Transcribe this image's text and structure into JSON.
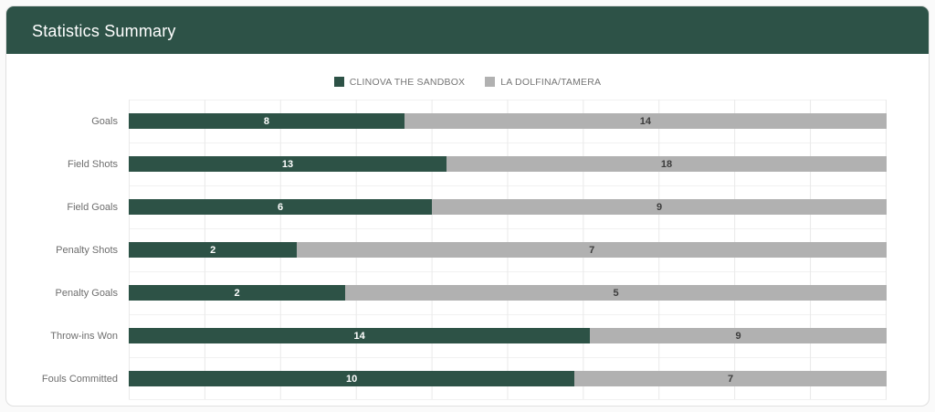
{
  "header": {
    "title": "Statistics Summary"
  },
  "colors": {
    "header_bg": "#2d5247",
    "team1": "#2d5246",
    "team2": "#b1b1b1",
    "value_on_team1": "#ffffff",
    "value_on_team2": "#3d3d3d",
    "label_text": "#6e6e6e",
    "legend_text": "#757575",
    "gridline": "#e9e9e9"
  },
  "chart_data": {
    "type": "bar",
    "variant": "horizontal-stacked-normalized",
    "title": "Statistics Summary",
    "xlabel": "",
    "ylabel": "",
    "grid": true,
    "legend_position": "top-center",
    "categories": [
      "Goals",
      "Field Shots",
      "Field Goals",
      "Penalty Shots",
      "Penalty Goals",
      "Throw-ins Won",
      "Fouls Committed"
    ],
    "series": [
      {
        "name": "CLINOVA THE SANDBOX",
        "color": "#2d5246",
        "values": [
          8,
          13,
          6,
          2,
          2,
          14,
          10
        ]
      },
      {
        "name": "LA DOLFINA/TAMERA",
        "color": "#b1b1b1",
        "values": [
          14,
          18,
          9,
          7,
          5,
          9,
          7
        ]
      }
    ]
  }
}
